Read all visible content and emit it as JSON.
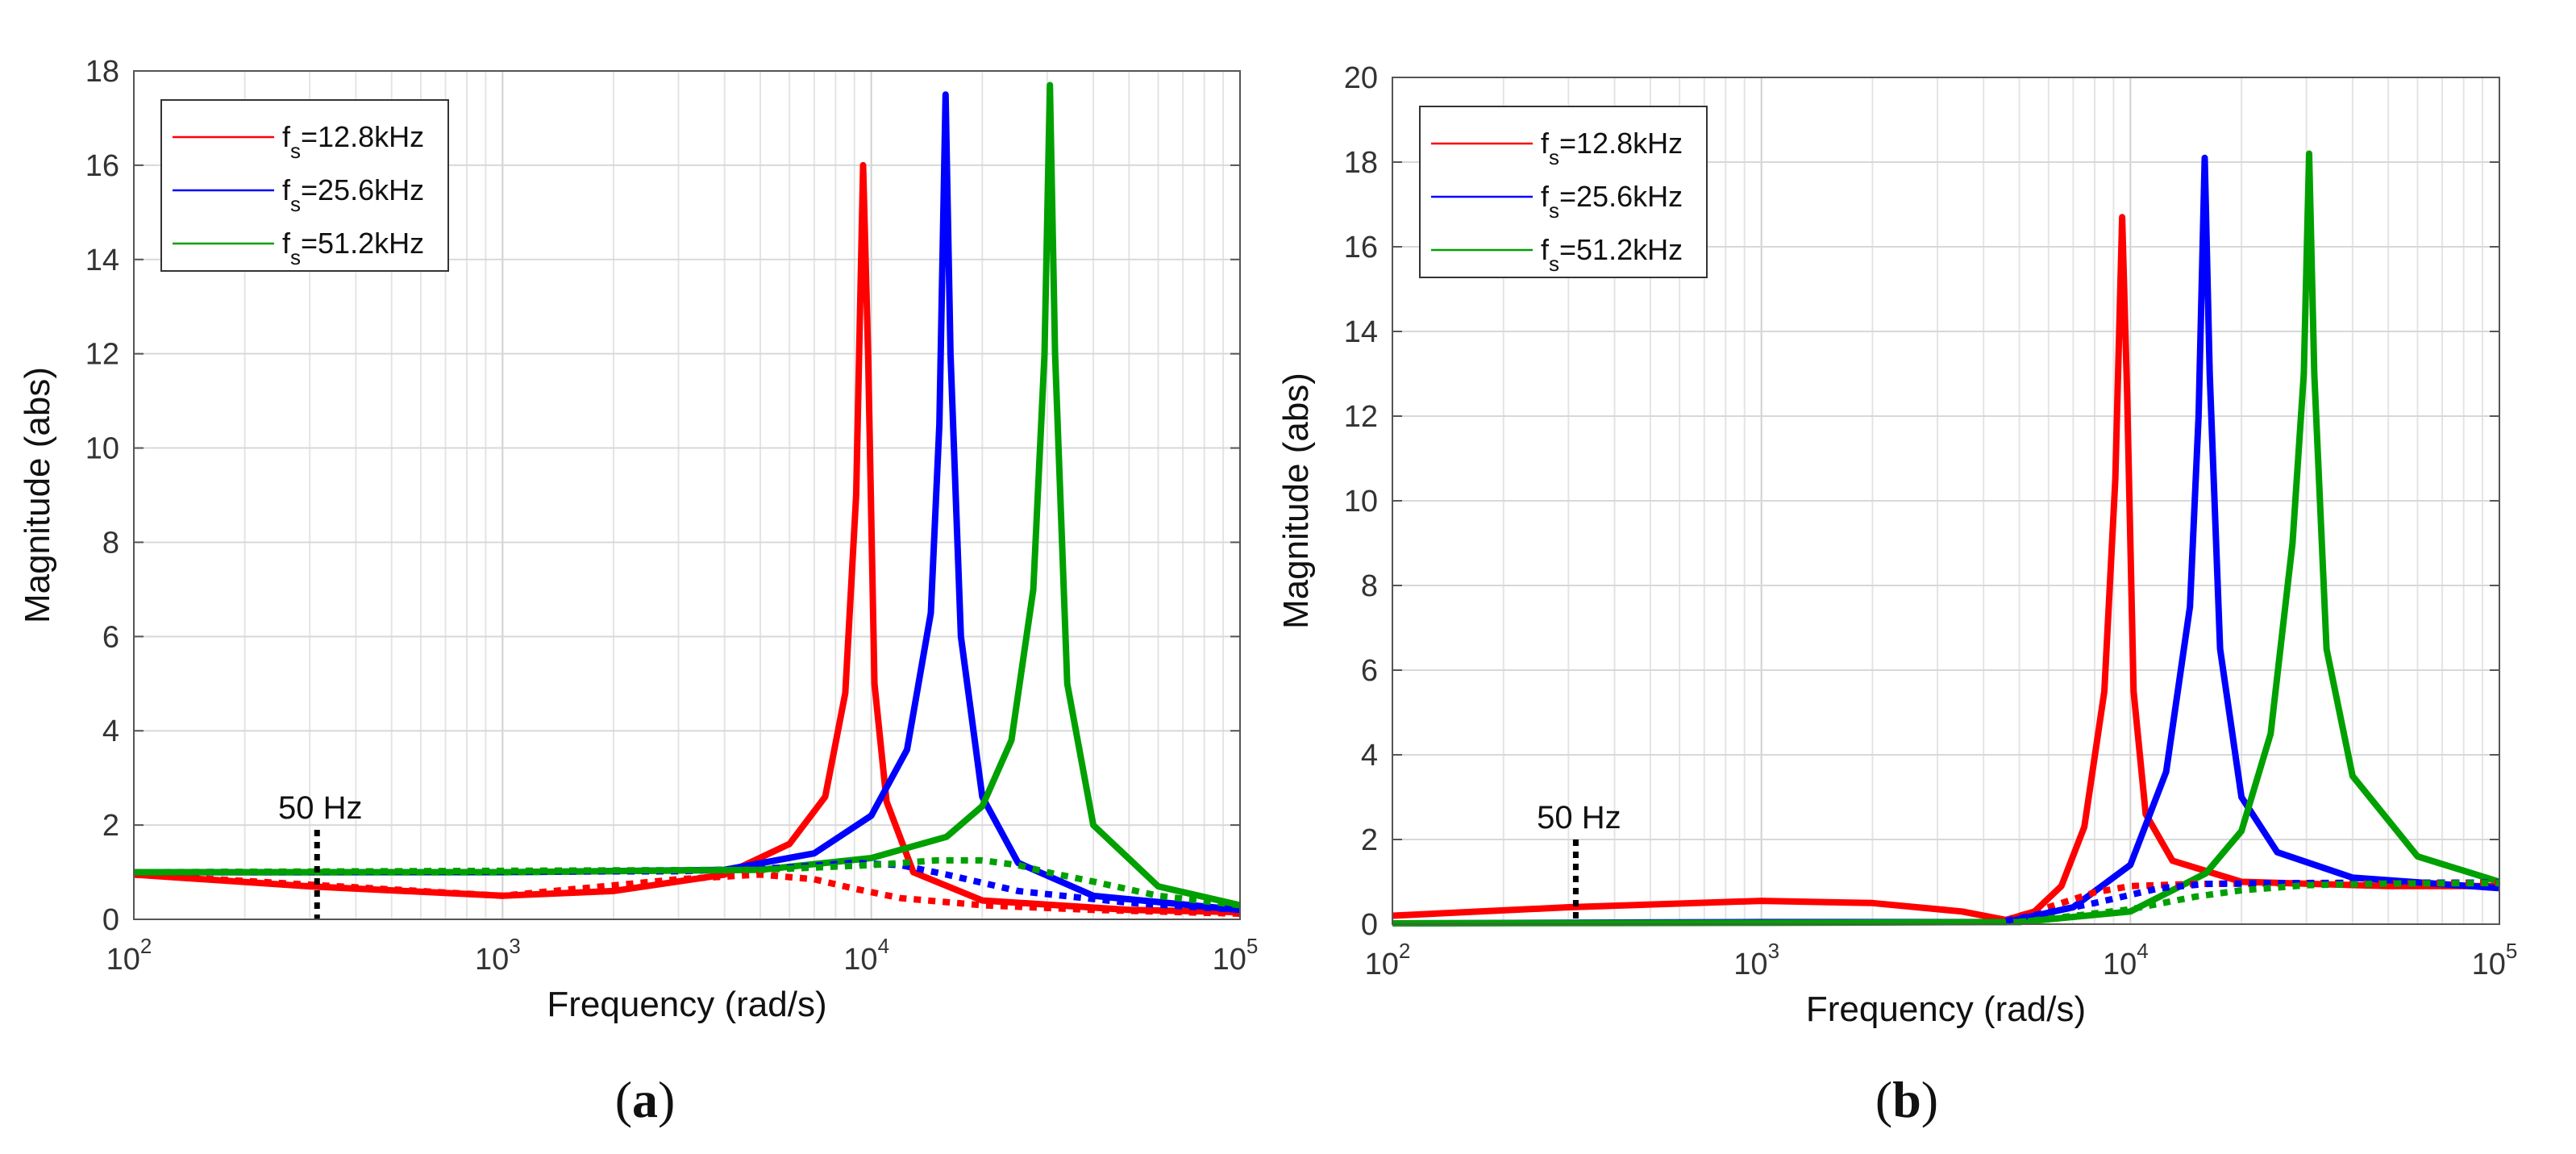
{
  "colors": {
    "red": "#ff0000",
    "blue": "#0000ff",
    "green": "#00a000",
    "marker": "#000000"
  },
  "chart_data": [
    {
      "type": "line",
      "panel": "a",
      "caption_open": "(",
      "caption_letter": "a",
      "caption_close": ")",
      "xlabel": "Frequency  (rad/s)",
      "ylabel": "Magnitude (abs)",
      "xscale": "log",
      "xlim": [
        100,
        100000
      ],
      "ylim": [
        0,
        18
      ],
      "yticks": [
        "0",
        "2",
        "4",
        "6",
        "8",
        "10",
        "12",
        "14",
        "16",
        "18"
      ],
      "xtick_base": "10",
      "xtick_exps": [
        "2",
        "3",
        "4",
        "5"
      ],
      "grid": true,
      "legend_location": "top-left",
      "legend": [
        {
          "prefix": "f",
          "sub": "s",
          "rest": "=12.8kHz",
          "color": "#ff0000"
        },
        {
          "prefix": "f",
          "sub": "s",
          "rest": "=25.6kHz",
          "color": "#0000ff"
        },
        {
          "prefix": "f",
          "sub": "s",
          "rest": "=51.2kHz",
          "color": "#00a000"
        }
      ],
      "annotation": {
        "text": "50 Hz",
        "x": 314,
        "y_top": 1.9
      },
      "series": [
        {
          "name": "fs=12.8kHz",
          "style": "solid",
          "color": "#ff0000",
          "x": [
            100,
            300,
            1000,
            2000,
            4000,
            6000,
            7500,
            8500,
            9100,
            9500,
            9800,
            10200,
            11000,
            13000,
            20000,
            50000,
            100000
          ],
          "y": [
            0.95,
            0.7,
            0.5,
            0.6,
            0.95,
            1.6,
            2.6,
            4.8,
            9.0,
            16.0,
            12.0,
            5.0,
            2.5,
            1.0,
            0.4,
            0.2,
            0.15
          ]
        },
        {
          "name": "fs=25.6kHz",
          "style": "solid",
          "color": "#0000ff",
          "x": [
            100,
            1000,
            4000,
            7000,
            10000,
            12500,
            14500,
            15300,
            15900,
            16400,
            17500,
            20000,
            25000,
            40000,
            100000
          ],
          "y": [
            1.0,
            1.0,
            1.05,
            1.4,
            2.2,
            3.6,
            6.5,
            10.5,
            17.5,
            12.0,
            6.0,
            2.6,
            1.2,
            0.5,
            0.2
          ]
        },
        {
          "name": "fs=51.2kHz",
          "style": "solid",
          "color": "#00a000",
          "x": [
            100,
            1000,
            5000,
            10000,
            16000,
            20000,
            24000,
            27500,
            29500,
            30500,
            31500,
            34000,
            40000,
            60000,
            100000
          ],
          "y": [
            1.0,
            1.0,
            1.05,
            1.3,
            1.75,
            2.4,
            3.8,
            7.0,
            12.0,
            17.7,
            12.0,
            5.0,
            2.0,
            0.7,
            0.3
          ]
        },
        {
          "name": "fs=12.8kHz dotted",
          "style": "dotted",
          "color": "#ff0000",
          "x": [
            100,
            1000,
            3000,
            5000,
            7000,
            9000,
            12000,
            20000,
            40000,
            100000
          ],
          "y": [
            0.95,
            0.5,
            0.85,
            0.95,
            0.85,
            0.65,
            0.45,
            0.3,
            0.2,
            0.12
          ]
        },
        {
          "name": "fs=25.6kHz dotted",
          "style": "dotted",
          "color": "#0000ff",
          "x": [
            100,
            3000,
            6000,
            9000,
            12000,
            16000,
            25000,
            50000,
            100000
          ],
          "y": [
            1.0,
            1.02,
            1.1,
            1.2,
            1.15,
            0.95,
            0.6,
            0.35,
            0.2
          ]
        },
        {
          "name": "fs=51.2kHz dotted",
          "style": "dotted",
          "color": "#00a000",
          "x": [
            100,
            5000,
            10000,
            15000,
            20000,
            25000,
            30000,
            40000,
            60000,
            100000
          ],
          "y": [
            1.0,
            1.05,
            1.15,
            1.25,
            1.25,
            1.15,
            1.0,
            0.8,
            0.5,
            0.3
          ]
        }
      ]
    },
    {
      "type": "line",
      "panel": "b",
      "caption_open": "(",
      "caption_letter": "b",
      "caption_close": ")",
      "xlabel": "Frequency  (rad/s)",
      "ylabel": "Magnitude (abs)",
      "xscale": "log",
      "xlim": [
        100,
        100000
      ],
      "ylim": [
        0,
        20
      ],
      "yticks": [
        "0",
        "2",
        "4",
        "6",
        "8",
        "10",
        "12",
        "14",
        "16",
        "18",
        "20"
      ],
      "xtick_base": "10",
      "xtick_exps": [
        "2",
        "3",
        "4",
        "5"
      ],
      "grid": true,
      "legend_location": "top-left",
      "legend": [
        {
          "prefix": "f",
          "sub": "s",
          "rest": "=12.8kHz",
          "color": "#ff0000"
        },
        {
          "prefix": "f",
          "sub": "s",
          "rest": "=25.6kHz",
          "color": "#0000ff"
        },
        {
          "prefix": "f",
          "sub": "s",
          "rest": "=51.2kHz",
          "color": "#00a000"
        }
      ],
      "annotation": {
        "text": "50 Hz",
        "x": 314,
        "y_top": 2.0
      },
      "series": [
        {
          "name": "fs=12.8kHz",
          "style": "solid",
          "color": "#ff0000",
          "x": [
            100,
            300,
            1000,
            2000,
            3500,
            4600,
            5500,
            6500,
            7500,
            8500,
            9100,
            9500,
            9800,
            10200,
            11000,
            13000,
            20000,
            50000,
            100000
          ],
          "y": [
            0.2,
            0.4,
            0.55,
            0.5,
            0.3,
            0.1,
            0.3,
            0.9,
            2.3,
            5.5,
            10.5,
            16.7,
            12.5,
            5.5,
            2.6,
            1.5,
            1.0,
            0.9,
            0.9
          ]
        },
        {
          "name": "fs=25.6kHz",
          "style": "solid",
          "color": "#0000ff",
          "x": [
            100,
            1000,
            4600,
            7000,
            10000,
            12500,
            14500,
            15300,
            15900,
            16400,
            17500,
            20000,
            25000,
            40000,
            100000
          ],
          "y": [
            0.02,
            0.05,
            0.05,
            0.4,
            1.4,
            3.6,
            7.5,
            12.0,
            18.1,
            13.0,
            6.5,
            3.0,
            1.7,
            1.1,
            0.85
          ]
        },
        {
          "name": "fs=51.2kHz",
          "style": "solid",
          "color": "#00a000",
          "x": [
            100,
            1000,
            5000,
            10000,
            16000,
            20000,
            24000,
            27500,
            29500,
            30500,
            31500,
            34000,
            40000,
            60000,
            100000
          ],
          "y": [
            0.02,
            0.03,
            0.05,
            0.3,
            1.2,
            2.2,
            4.5,
            9.0,
            13.0,
            18.2,
            13.0,
            6.5,
            3.5,
            1.6,
            1.0
          ]
        },
        {
          "name": "fs=12.8kHz dotted",
          "style": "dotted",
          "color": "#ff0000",
          "x": [
            4600,
            6000,
            8000,
            10000,
            15000,
            30000,
            100000
          ],
          "y": [
            0.1,
            0.4,
            0.75,
            0.9,
            0.95,
            0.97,
            0.98
          ]
        },
        {
          "name": "fs=25.6kHz dotted",
          "style": "dotted",
          "color": "#0000ff",
          "x": [
            4600,
            8000,
            12000,
            16000,
            25000,
            50000,
            100000
          ],
          "y": [
            0.08,
            0.5,
            0.85,
            0.95,
            0.97,
            0.98,
            0.98
          ]
        },
        {
          "name": "fs=51.2kHz dotted",
          "style": "dotted",
          "color": "#00a000",
          "x": [
            5000,
            10000,
            15000,
            20000,
            30000,
            50000,
            100000
          ],
          "y": [
            0.05,
            0.35,
            0.65,
            0.8,
            0.92,
            0.96,
            0.97
          ]
        }
      ]
    }
  ]
}
